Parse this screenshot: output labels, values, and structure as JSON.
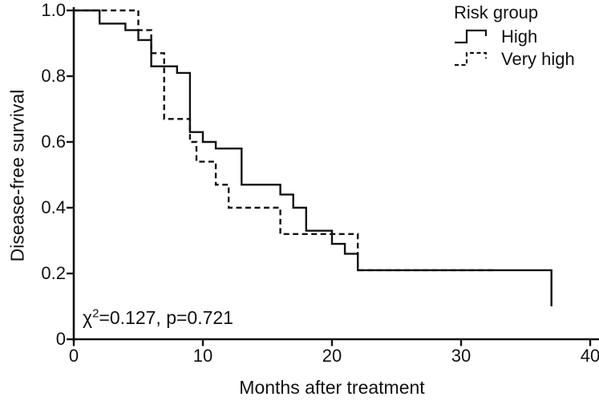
{
  "figure": {
    "background_color": "#ffffff",
    "line_color": "#111111"
  },
  "chart_data": {
    "type": "line",
    "subtype": "kaplan-meier-step-survival",
    "title": "",
    "xlabel": "Months after treatment",
    "ylabel": "Disease-free survival",
    "xlim": [
      0,
      40
    ],
    "ylim": [
      0,
      1.0
    ],
    "x_ticks": [
      "0",
      "10",
      "20",
      "30",
      "40"
    ],
    "y_ticks": [
      "0",
      "0.2",
      "0.4",
      "0.6",
      "0.8",
      "1.0"
    ],
    "grid": "off",
    "legend_position": "top-right",
    "annotation": "χ²=0.127, p=0.721",
    "annotation_parts": {
      "chi": "χ",
      "sup": "2",
      "rest": "=0.127, p=0.721"
    },
    "legend": {
      "title": "Risk group",
      "entries": [
        {
          "label": "High",
          "style": "solid"
        },
        {
          "label": "Very high",
          "style": "dashed"
        }
      ]
    },
    "series": [
      {
        "name": "High",
        "style": "solid",
        "start": [
          0,
          1.0
        ],
        "steps": [
          [
            2,
            0.96
          ],
          [
            4,
            0.94
          ],
          [
            5,
            0.91
          ],
          [
            6,
            0.83
          ],
          [
            8,
            0.81
          ],
          [
            9,
            0.63
          ],
          [
            10,
            0.6
          ],
          [
            11,
            0.58
          ],
          [
            13,
            0.47
          ],
          [
            16,
            0.44
          ],
          [
            17,
            0.4
          ],
          [
            18,
            0.33
          ],
          [
            20,
            0.29
          ],
          [
            21,
            0.26
          ],
          [
            22,
            0.21
          ],
          [
            37,
            0.1
          ]
        ],
        "end_time": 37
      },
      {
        "name": "Very high",
        "style": "dashed",
        "start": [
          0,
          1.0
        ],
        "steps": [
          [
            5,
            0.94
          ],
          [
            6,
            0.87
          ],
          [
            7,
            0.67
          ],
          [
            9,
            0.6
          ],
          [
            9.5,
            0.54
          ],
          [
            11,
            0.47
          ],
          [
            12,
            0.4
          ],
          [
            16,
            0.32
          ],
          [
            22,
            0.21
          ]
        ],
        "end_time": 32.5
      }
    ]
  }
}
